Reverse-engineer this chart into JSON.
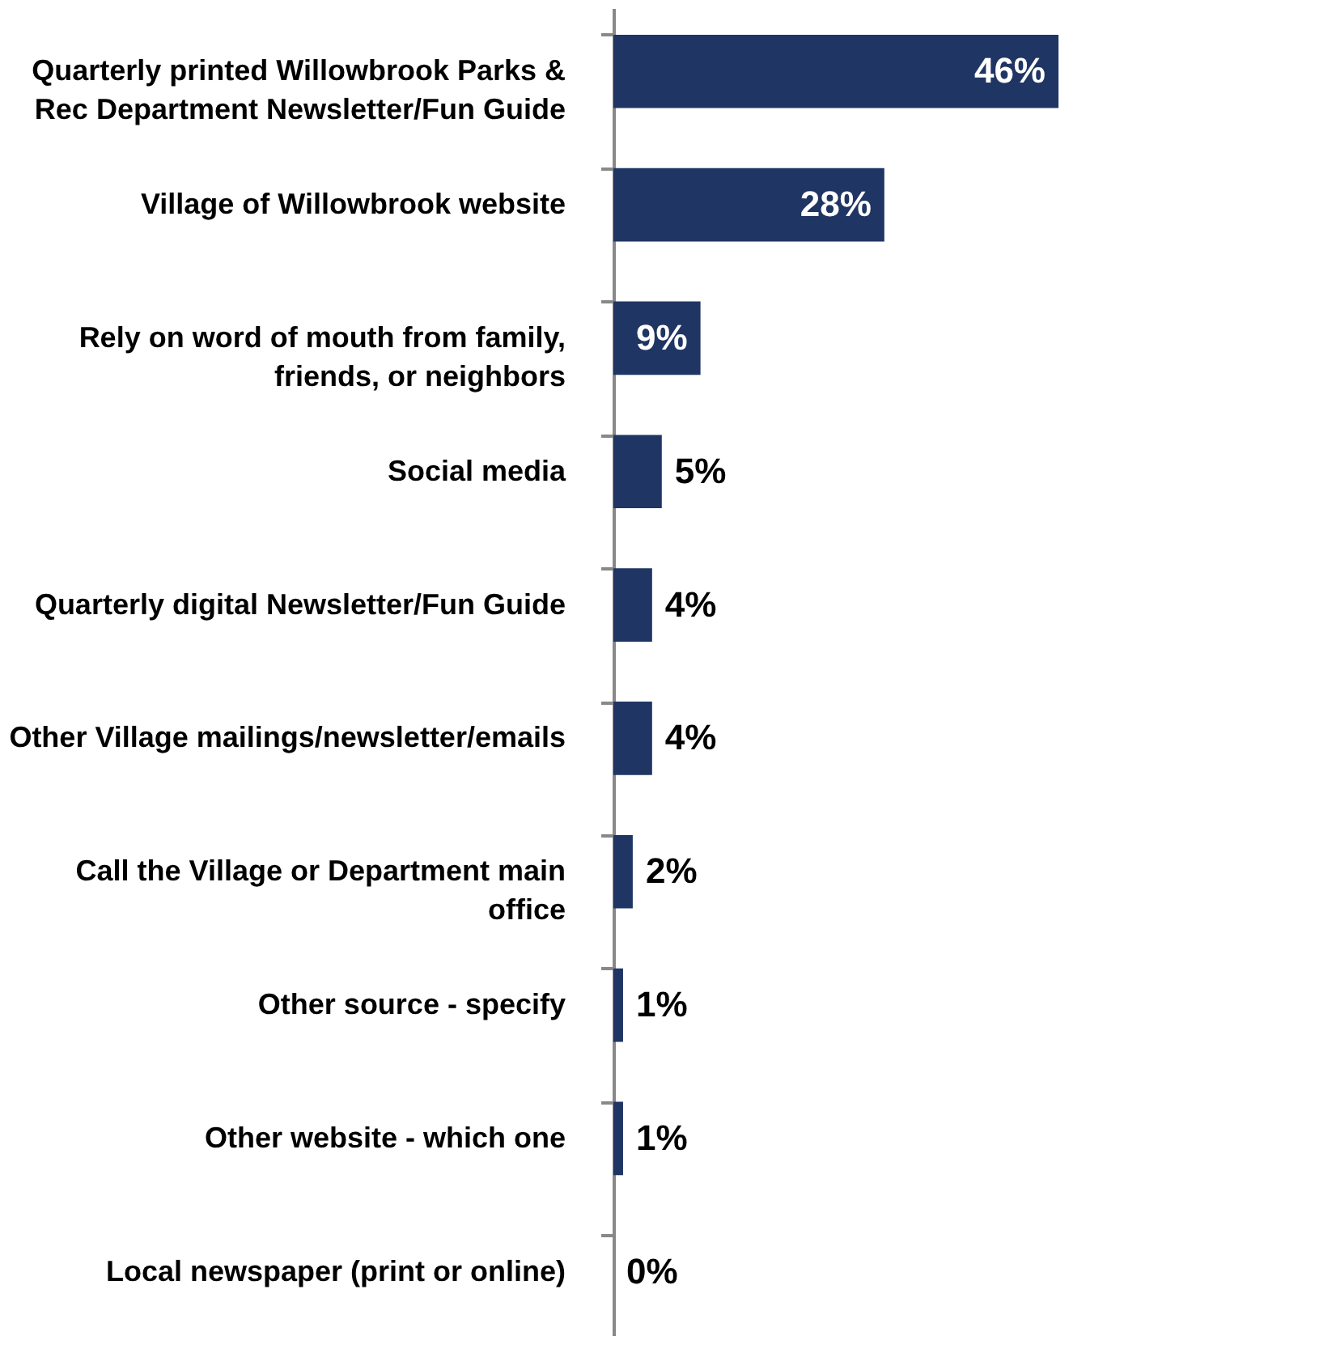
{
  "chart_data": {
    "type": "bar",
    "orientation": "horizontal",
    "xlim": [
      0,
      46
    ],
    "color": "#1f3563",
    "categories": [
      "Quarterly printed Willowbrook Parks & Rec Department Newsletter/Fun Guide",
      "Village of Willowbrook website",
      "Rely on word of mouth from family, friends, or neighbors",
      "Social media",
      "Quarterly digital Newsletter/Fun Guide",
      "Other Village mailings/newsletter/emails",
      "Call the Village or Department main office",
      "Other source - specify",
      "Other website - which one",
      "Local newspaper (print or online)"
    ],
    "values": [
      46,
      28,
      9,
      5,
      4,
      4,
      2,
      1,
      1,
      0
    ],
    "value_labels": [
      "46%",
      "28%",
      "9%",
      "5%",
      "4%",
      "4%",
      "2%",
      "1%",
      "1%",
      "0%"
    ]
  }
}
